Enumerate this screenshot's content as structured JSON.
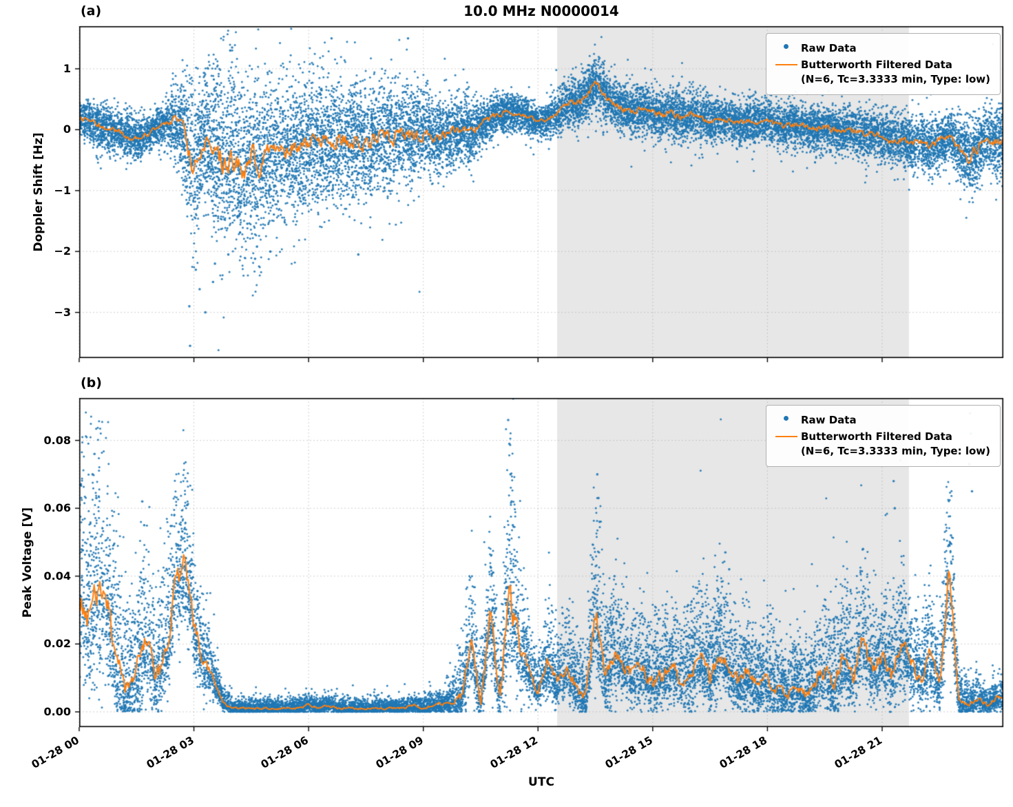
{
  "title": "10.0 MHz N0000014",
  "panel_labels": {
    "a": "(a)",
    "b": "(b)"
  },
  "xlabel": "UTC",
  "legend": {
    "raw_label": "Raw Data",
    "filtered_label": "Butterworth Filtered Data",
    "filtered_sub": "(N=6, Tc=3.3333 min, Type: low)"
  },
  "colors": {
    "raw": "#1f77b4",
    "filtered": "#ff7f0e",
    "shade": "#e7e7e7",
    "grid": "#aaaaaa",
    "axis": "#000000"
  },
  "chart_data": [
    {
      "type": "scatter",
      "name": "doppler-shift-panel",
      "title": "10.0 MHz N0000014",
      "ylabel": "Doppler Shift [Hz]",
      "xlabel": "UTC",
      "legend_position": "upper right",
      "grid": true,
      "xlim": [
        0,
        24.17
      ],
      "ylim": [
        -3.75,
        1.7
      ],
      "yticks": [
        1,
        0,
        -1,
        -2,
        -3
      ],
      "ytick_labels": [
        "1",
        "0",
        "−1",
        "−2",
        "−3"
      ],
      "xticks": [
        0,
        3,
        6,
        9,
        12,
        15,
        18,
        21
      ],
      "xtick_labels": [
        "01-28 00",
        "01-28 03",
        "01-28 06",
        "01-28 09",
        "01-28 12",
        "01-28 15",
        "01-28 18",
        "01-28 21"
      ],
      "shaded_region": [
        12.5,
        21.7
      ],
      "series": [
        {
          "name": "Raw Data",
          "kind": "scatter"
        },
        {
          "name": "Butterworth Filtered Data (N=6, Tc=3.3333 min, Type: low)",
          "kind": "line",
          "values_key": "filtered"
        }
      ],
      "x_hours": [
        0,
        0.25,
        0.5,
        0.75,
        1,
        1.25,
        1.5,
        1.75,
        2,
        2.25,
        2.5,
        2.75,
        3,
        3.25,
        3.5,
        3.75,
        4,
        4.25,
        4.5,
        4.75,
        5,
        5.25,
        5.5,
        5.75,
        6,
        6.25,
        6.5,
        6.75,
        7,
        7.25,
        7.5,
        7.75,
        8,
        8.25,
        8.5,
        8.75,
        9,
        9.25,
        9.5,
        9.75,
        10,
        10.25,
        10.5,
        10.75,
        11,
        11.25,
        11.5,
        11.75,
        12,
        12.25,
        12.5,
        12.75,
        13,
        13.25,
        13.5,
        13.75,
        14,
        14.25,
        14.5,
        14.75,
        15,
        15.25,
        15.5,
        15.75,
        16,
        16.25,
        16.5,
        16.75,
        17,
        17.25,
        17.5,
        17.75,
        18,
        18.25,
        18.5,
        18.75,
        19,
        19.25,
        19.5,
        19.75,
        20,
        20.25,
        20.5,
        20.75,
        21,
        21.25,
        21.5,
        21.75,
        22,
        22.25,
        22.5,
        22.75,
        23,
        23.25,
        23.5,
        23.75,
        24
      ],
      "filtered": [
        0.2,
        0.12,
        0.08,
        0.02,
        -0.02,
        -0.1,
        -0.15,
        -0.08,
        0.02,
        0.1,
        0.15,
        -0.05,
        -0.65,
        -0.15,
        -0.3,
        -0.55,
        -0.45,
        -0.7,
        -0.4,
        -0.65,
        -0.35,
        -0.45,
        -0.25,
        -0.35,
        -0.2,
        -0.15,
        -0.25,
        -0.12,
        -0.18,
        -0.1,
        -0.2,
        -0.12,
        -0.06,
        -0.12,
        -0.05,
        -0.12,
        -0.06,
        -0.15,
        -0.1,
        -0.04,
        0.0,
        -0.05,
        0.08,
        0.18,
        0.25,
        0.3,
        0.26,
        0.22,
        0.12,
        0.18,
        0.28,
        0.38,
        0.45,
        0.52,
        0.78,
        0.55,
        0.4,
        0.34,
        0.3,
        0.36,
        0.3,
        0.24,
        0.3,
        0.2,
        0.26,
        0.2,
        0.14,
        0.2,
        0.15,
        0.1,
        0.16,
        0.1,
        0.15,
        0.08,
        0.04,
        0.1,
        0.05,
        0.0,
        0.06,
        0.0,
        -0.05,
        0.0,
        -0.08,
        -0.04,
        -0.1,
        -0.2,
        -0.14,
        -0.24,
        -0.18,
        -0.28,
        -0.18,
        -0.1,
        -0.28,
        -0.48,
        -0.3,
        -0.12,
        -0.2
      ],
      "scatter_spread": [
        0.15,
        0.18,
        0.2,
        0.18,
        0.18,
        0.2,
        0.18,
        0.15,
        0.15,
        0.18,
        0.3,
        0.45,
        0.6,
        0.55,
        0.7,
        0.75,
        0.75,
        0.75,
        0.7,
        0.7,
        0.65,
        0.6,
        0.6,
        0.6,
        0.55,
        0.55,
        0.55,
        0.5,
        0.5,
        0.5,
        0.5,
        0.45,
        0.45,
        0.45,
        0.4,
        0.4,
        0.4,
        0.35,
        0.3,
        0.28,
        0.25,
        0.25,
        0.2,
        0.18,
        0.15,
        0.15,
        0.15,
        0.15,
        0.12,
        0.15,
        0.18,
        0.2,
        0.22,
        0.22,
        0.22,
        0.22,
        0.2,
        0.2,
        0.2,
        0.2,
        0.2,
        0.2,
        0.2,
        0.2,
        0.2,
        0.2,
        0.2,
        0.18,
        0.18,
        0.18,
        0.18,
        0.18,
        0.18,
        0.18,
        0.18,
        0.18,
        0.18,
        0.18,
        0.18,
        0.18,
        0.18,
        0.18,
        0.2,
        0.2,
        0.2,
        0.22,
        0.22,
        0.22,
        0.22,
        0.22,
        0.2,
        0.2,
        0.25,
        0.3,
        0.28,
        0.25,
        0.3
      ],
      "outliers": [
        [
          2.88,
          -2.9
        ],
        [
          2.9,
          -3.55
        ],
        [
          3.05,
          -2.3
        ],
        [
          3.15,
          -2.62
        ],
        [
          3.3,
          -3.0
        ],
        [
          3.5,
          -2.5
        ],
        [
          3.55,
          -2.2
        ],
        [
          3.9,
          -2.05
        ],
        [
          4.6,
          -2.12
        ],
        [
          4.65,
          -1.92
        ],
        [
          5.0,
          -2.0
        ],
        [
          7.3,
          -2.05
        ],
        [
          3.95,
          1.3
        ],
        [
          4.0,
          1.35
        ],
        [
          6.6,
          1.5
        ],
        [
          8.6,
          1.5
        ]
      ]
    },
    {
      "type": "scatter",
      "name": "peak-voltage-panel",
      "ylabel": "Peak Voltage [V]",
      "xlabel": "UTC",
      "legend_position": "upper right",
      "grid": true,
      "xlim": [
        0,
        24.17
      ],
      "ylim": [
        -0.0045,
        0.0925
      ],
      "yticks": [
        0.0,
        0.02,
        0.04,
        0.06,
        0.08
      ],
      "ytick_labels": [
        "0.00",
        "0.02",
        "0.04",
        "0.06",
        "0.08"
      ],
      "xticks": [
        0,
        3,
        6,
        9,
        12,
        15,
        18,
        21
      ],
      "xtick_labels": [
        "01-28 00",
        "01-28 03",
        "01-28 06",
        "01-28 09",
        "01-28 12",
        "01-28 15",
        "01-28 18",
        "01-28 21"
      ],
      "shaded_region": [
        12.5,
        21.7
      ],
      "series": [
        {
          "name": "Raw Data",
          "kind": "scatter"
        },
        {
          "name": "Butterworth Filtered Data (N=6, Tc=3.3333 min, Type: low)",
          "kind": "line",
          "values_key": "filtered"
        }
      ],
      "x_hours": [
        0,
        0.25,
        0.5,
        0.75,
        1,
        1.25,
        1.5,
        1.75,
        2,
        2.25,
        2.5,
        2.75,
        3,
        3.25,
        3.5,
        3.75,
        4,
        4.25,
        4.5,
        4.75,
        5,
        5.25,
        5.5,
        5.75,
        6,
        6.25,
        6.5,
        6.75,
        7,
        7.25,
        7.5,
        7.75,
        8,
        8.25,
        8.5,
        8.75,
        9,
        9.25,
        9.5,
        9.75,
        10,
        10.25,
        10.5,
        10.75,
        11,
        11.25,
        11.5,
        11.75,
        12,
        12.25,
        12.5,
        12.75,
        13,
        13.25,
        13.5,
        13.75,
        14,
        14.25,
        14.5,
        14.75,
        15,
        15.25,
        15.5,
        15.75,
        16,
        16.25,
        16.5,
        16.75,
        17,
        17.25,
        17.5,
        17.75,
        18,
        18.25,
        18.5,
        18.75,
        19,
        19.25,
        19.5,
        19.75,
        20,
        20.25,
        20.5,
        20.75,
        21,
        21.25,
        21.5,
        21.75,
        22,
        22.25,
        22.5,
        22.75,
        23,
        23.25,
        23.5,
        23.75,
        24
      ],
      "filtered": [
        0.035,
        0.028,
        0.036,
        0.03,
        0.012,
        0.006,
        0.012,
        0.02,
        0.01,
        0.015,
        0.035,
        0.045,
        0.025,
        0.015,
        0.01,
        0.003,
        0.001,
        0.001,
        0.001,
        0.001,
        0.001,
        0.001,
        0.001,
        0.001,
        0.002,
        0.001,
        0.002,
        0.001,
        0.001,
        0.001,
        0.001,
        0.001,
        0.001,
        0.001,
        0.001,
        0.002,
        0.001,
        0.002,
        0.002,
        0.003,
        0.004,
        0.02,
        0.003,
        0.03,
        0.004,
        0.035,
        0.02,
        0.012,
        0.006,
        0.015,
        0.008,
        0.014,
        0.007,
        0.004,
        0.03,
        0.01,
        0.018,
        0.014,
        0.01,
        0.013,
        0.009,
        0.011,
        0.014,
        0.009,
        0.011,
        0.016,
        0.01,
        0.018,
        0.013,
        0.008,
        0.011,
        0.007,
        0.009,
        0.007,
        0.005,
        0.007,
        0.005,
        0.009,
        0.013,
        0.008,
        0.016,
        0.01,
        0.022,
        0.012,
        0.016,
        0.01,
        0.02,
        0.014,
        0.01,
        0.016,
        0.008,
        0.04,
        0.004,
        0.002,
        0.004,
        0.002,
        0.004
      ],
      "scatter_spread": [
        0.018,
        0.02,
        0.02,
        0.018,
        0.015,
        0.01,
        0.012,
        0.012,
        0.01,
        0.012,
        0.015,
        0.015,
        0.01,
        0.008,
        0.004,
        0.002,
        0.0012,
        0.0012,
        0.0012,
        0.0012,
        0.0012,
        0.0012,
        0.0012,
        0.0012,
        0.0015,
        0.0012,
        0.0015,
        0.0012,
        0.0012,
        0.0012,
        0.0012,
        0.0012,
        0.0012,
        0.0012,
        0.0012,
        0.0015,
        0.0012,
        0.0018,
        0.002,
        0.003,
        0.006,
        0.01,
        0.005,
        0.012,
        0.006,
        0.02,
        0.012,
        0.006,
        0.004,
        0.008,
        0.006,
        0.008,
        0.006,
        0.005,
        0.015,
        0.008,
        0.01,
        0.008,
        0.008,
        0.008,
        0.008,
        0.008,
        0.008,
        0.008,
        0.008,
        0.009,
        0.008,
        0.01,
        0.008,
        0.008,
        0.008,
        0.007,
        0.008,
        0.007,
        0.006,
        0.007,
        0.006,
        0.008,
        0.009,
        0.008,
        0.01,
        0.008,
        0.011,
        0.008,
        0.009,
        0.008,
        0.01,
        0.009,
        0.008,
        0.01,
        0.006,
        0.015,
        0.004,
        0.003,
        0.003,
        0.002,
        0.003
      ],
      "outliers": [
        [
          0.35,
          0.07
        ],
        [
          0.4,
          0.076
        ],
        [
          0.45,
          0.063
        ],
        [
          1.65,
          0.062
        ],
        [
          1.7,
          0.055
        ],
        [
          2.6,
          0.053
        ],
        [
          11.22,
          0.086
        ],
        [
          11.25,
          0.079
        ],
        [
          11.28,
          0.07
        ],
        [
          11.31,
          0.062
        ],
        [
          11.34,
          0.055
        ],
        [
          13.55,
          0.07
        ],
        [
          13.58,
          0.063
        ],
        [
          13.61,
          0.056
        ],
        [
          14.0,
          0.04
        ],
        [
          16.9,
          0.047
        ],
        [
          17.0,
          0.042
        ],
        [
          20.5,
          0.048
        ],
        [
          21.3,
          0.068
        ],
        [
          21.33,
          0.06
        ],
        [
          22.8,
          0.052
        ],
        [
          23.28,
          0.073
        ],
        [
          23.3,
          0.088
        ],
        [
          23.32,
          0.082
        ],
        [
          23.35,
          0.065
        ]
      ]
    }
  ]
}
